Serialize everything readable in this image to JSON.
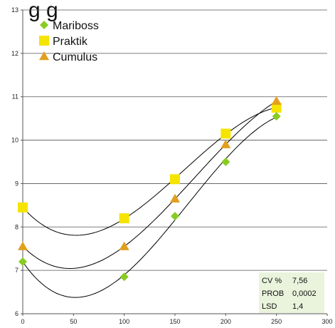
{
  "chart_data": {
    "type": "scatter",
    "title_fragment": "g                  g",
    "xlabel": "",
    "ylabel": "",
    "xlim": [
      0,
      300
    ],
    "ylim": [
      6,
      13
    ],
    "x_ticks": [
      0,
      50,
      100,
      150,
      200,
      250,
      300
    ],
    "y_ticks": [
      6,
      7,
      8,
      9,
      10,
      11,
      12,
      13
    ],
    "grid": "horizontal",
    "legend_position": "top-left",
    "series": [
      {
        "name": "Mariboss",
        "marker": "diamond",
        "color": "#88cc22",
        "x": [
          0,
          100,
          150,
          200,
          250
        ],
        "y": [
          7.2,
          6.85,
          8.25,
          9.5,
          10.55
        ]
      },
      {
        "name": "Praktik",
        "marker": "square",
        "color": "#f5e400",
        "x": [
          0,
          100,
          150,
          200,
          250
        ],
        "y": [
          8.45,
          8.2,
          9.1,
          10.15,
          10.75
        ]
      },
      {
        "name": "Cumulus",
        "marker": "triangle",
        "color": "#e0a020",
        "x": [
          0,
          100,
          150,
          200,
          250
        ],
        "y": [
          7.55,
          7.55,
          8.65,
          9.9,
          10.9
        ]
      }
    ],
    "trendline_color": "#000000",
    "stats": [
      {
        "label": "CV %",
        "value": "7,56"
      },
      {
        "label": "PROB",
        "value": "0,0002"
      },
      {
        "label": "LSD",
        "value": "1,4"
      }
    ],
    "stats_bg": "#eaf3dc"
  }
}
